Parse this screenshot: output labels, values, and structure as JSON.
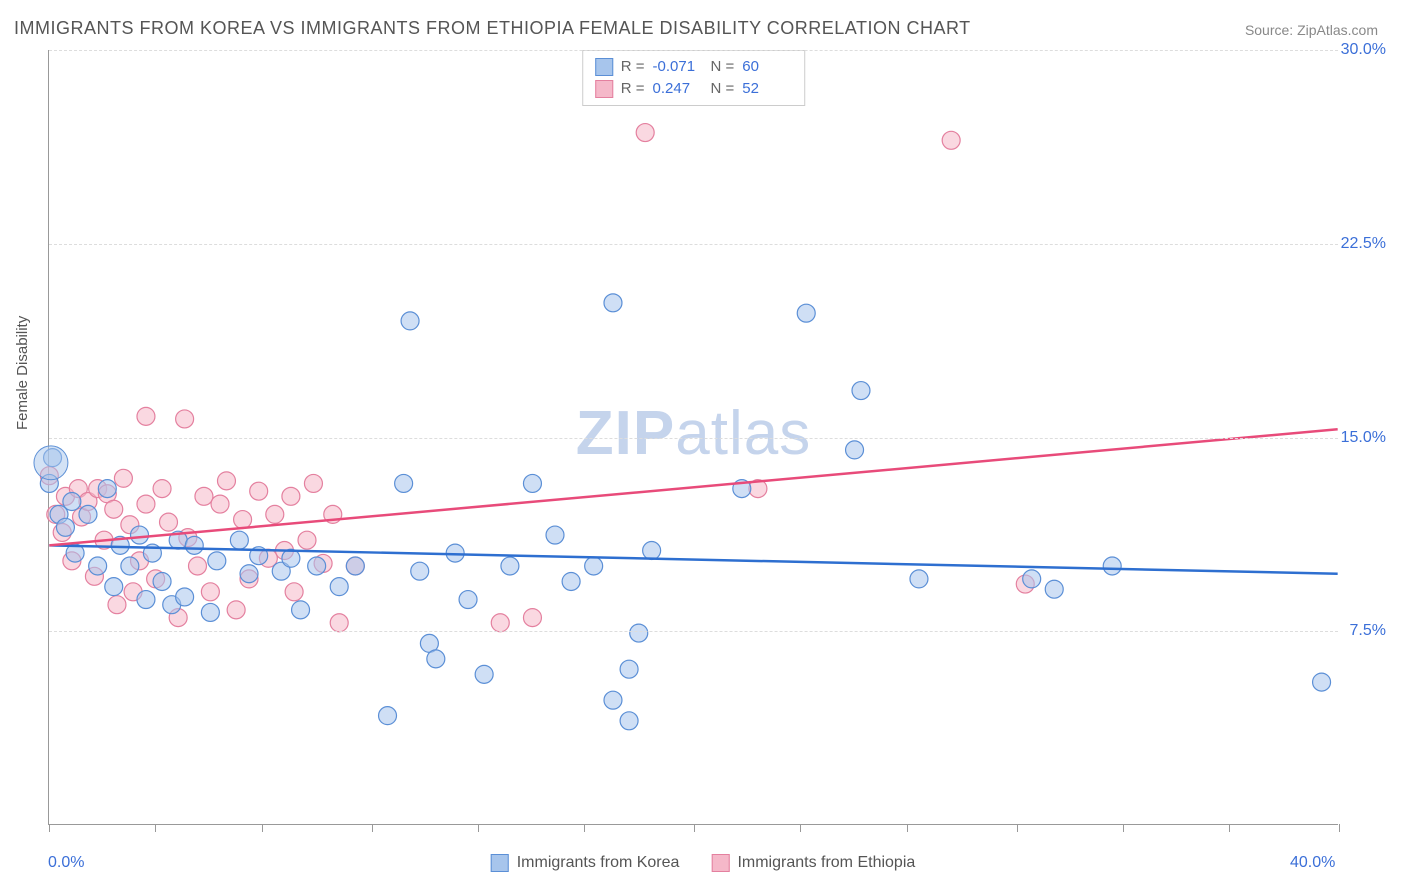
{
  "title": "IMMIGRANTS FROM KOREA VS IMMIGRANTS FROM ETHIOPIA FEMALE DISABILITY CORRELATION CHART",
  "source": "Source: ZipAtlas.com",
  "ylabel": "Female Disability",
  "watermark_a": "ZIP",
  "watermark_b": "atlas",
  "chart": {
    "type": "scatter",
    "xlim": [
      0,
      40
    ],
    "ylim": [
      0,
      30
    ],
    "x_ticks": [
      0,
      3.3,
      6.6,
      10,
      13.3,
      16.6,
      20,
      23.3,
      26.6,
      30,
      33.3,
      36.6,
      40
    ],
    "x_tick_labels_shown": {
      "0": "0.0%",
      "40": "40.0%"
    },
    "y_grid": [
      7.5,
      15.0,
      22.5,
      30.0
    ],
    "y_tick_labels": {
      "7.5": "7.5%",
      "15": "15.0%",
      "22.5": "22.5%",
      "30": "30.0%"
    },
    "background_color": "#ffffff",
    "grid_color": "#dddddd",
    "axis_color": "#999999",
    "label_color": "#3b6fd8",
    "point_radius": 9,
    "point_opacity": 0.55,
    "series": [
      {
        "name": "Immigrants from Korea",
        "fill": "#a7c5ec",
        "stroke": "#5b8fd6",
        "line_color": "#2e6fd0",
        "R": "-0.071",
        "N": "60",
        "trend": {
          "x1": 0,
          "y1": 10.8,
          "x2": 40,
          "y2": 9.7
        },
        "points": [
          [
            0.1,
            14.2
          ],
          [
            0.0,
            13.2
          ],
          [
            0.3,
            12.0
          ],
          [
            0.5,
            11.5
          ],
          [
            0.7,
            12.5
          ],
          [
            0.8,
            10.5
          ],
          [
            1.2,
            12.0
          ],
          [
            1.5,
            10.0
          ],
          [
            1.8,
            13.0
          ],
          [
            2.0,
            9.2
          ],
          [
            2.2,
            10.8
          ],
          [
            2.5,
            10.0
          ],
          [
            2.8,
            11.2
          ],
          [
            3.0,
            8.7
          ],
          [
            3.2,
            10.5
          ],
          [
            3.5,
            9.4
          ],
          [
            3.8,
            8.5
          ],
          [
            4.0,
            11.0
          ],
          [
            4.2,
            8.8
          ],
          [
            4.5,
            10.8
          ],
          [
            5.0,
            8.2
          ],
          [
            5.2,
            10.2
          ],
          [
            5.9,
            11.0
          ],
          [
            6.2,
            9.7
          ],
          [
            6.5,
            10.4
          ],
          [
            7.2,
            9.8
          ],
          [
            7.5,
            10.3
          ],
          [
            7.8,
            8.3
          ],
          [
            8.3,
            10.0
          ],
          [
            9.0,
            9.2
          ],
          [
            9.5,
            10.0
          ],
          [
            10.5,
            4.2
          ],
          [
            11.0,
            13.2
          ],
          [
            11.2,
            19.5
          ],
          [
            11.5,
            9.8
          ],
          [
            11.8,
            7.0
          ],
          [
            12.0,
            6.4
          ],
          [
            12.6,
            10.5
          ],
          [
            13.0,
            8.7
          ],
          [
            13.5,
            5.8
          ],
          [
            14.3,
            10.0
          ],
          [
            15.0,
            13.2
          ],
          [
            15.7,
            11.2
          ],
          [
            16.2,
            9.4
          ],
          [
            16.9,
            10.0
          ],
          [
            17.5,
            4.8
          ],
          [
            17.5,
            20.2
          ],
          [
            18.0,
            6.0
          ],
          [
            18.0,
            4.0
          ],
          [
            18.3,
            7.4
          ],
          [
            18.7,
            10.6
          ],
          [
            21.5,
            13.0
          ],
          [
            23.5,
            19.8
          ],
          [
            25.0,
            14.5
          ],
          [
            25.2,
            16.8
          ],
          [
            27.0,
            9.5
          ],
          [
            30.5,
            9.5
          ],
          [
            31.2,
            9.1
          ],
          [
            33.0,
            10.0
          ],
          [
            39.5,
            5.5
          ]
        ]
      },
      {
        "name": "Immigrants from Ethiopia",
        "fill": "#f5b8c9",
        "stroke": "#e4809f",
        "line_color": "#e84b7a",
        "R": "0.247",
        "N": "52",
        "trend": {
          "x1": 0,
          "y1": 10.8,
          "x2": 40,
          "y2": 15.3
        },
        "points": [
          [
            0.0,
            13.5
          ],
          [
            0.2,
            12.0
          ],
          [
            0.4,
            11.3
          ],
          [
            0.5,
            12.7
          ],
          [
            0.7,
            10.2
          ],
          [
            0.9,
            13.0
          ],
          [
            1.0,
            11.9
          ],
          [
            1.2,
            12.5
          ],
          [
            1.4,
            9.6
          ],
          [
            1.5,
            13.0
          ],
          [
            1.7,
            11.0
          ],
          [
            1.8,
            12.8
          ],
          [
            2.0,
            12.2
          ],
          [
            2.1,
            8.5
          ],
          [
            2.3,
            13.4
          ],
          [
            2.5,
            11.6
          ],
          [
            2.6,
            9.0
          ],
          [
            2.8,
            10.2
          ],
          [
            3.0,
            12.4
          ],
          [
            3.0,
            15.8
          ],
          [
            3.3,
            9.5
          ],
          [
            3.5,
            13.0
          ],
          [
            3.7,
            11.7
          ],
          [
            4.0,
            8.0
          ],
          [
            4.2,
            15.7
          ],
          [
            4.3,
            11.1
          ],
          [
            4.6,
            10.0
          ],
          [
            4.8,
            12.7
          ],
          [
            5.0,
            9.0
          ],
          [
            5.3,
            12.4
          ],
          [
            5.5,
            13.3
          ],
          [
            5.8,
            8.3
          ],
          [
            6.0,
            11.8
          ],
          [
            6.2,
            9.5
          ],
          [
            6.5,
            12.9
          ],
          [
            6.8,
            10.3
          ],
          [
            7.0,
            12.0
          ],
          [
            7.3,
            10.6
          ],
          [
            7.5,
            12.7
          ],
          [
            7.6,
            9.0
          ],
          [
            8.0,
            11.0
          ],
          [
            8.2,
            13.2
          ],
          [
            8.5,
            10.1
          ],
          [
            8.8,
            12.0
          ],
          [
            9.0,
            7.8
          ],
          [
            9.5,
            10.0
          ],
          [
            14.0,
            7.8
          ],
          [
            15.0,
            8.0
          ],
          [
            18.5,
            26.8
          ],
          [
            22.0,
            13.0
          ],
          [
            28.0,
            26.5
          ],
          [
            30.3,
            9.3
          ]
        ]
      }
    ]
  },
  "legend": {
    "series1": "Immigrants from Korea",
    "series2": "Immigrants from Ethiopia"
  }
}
